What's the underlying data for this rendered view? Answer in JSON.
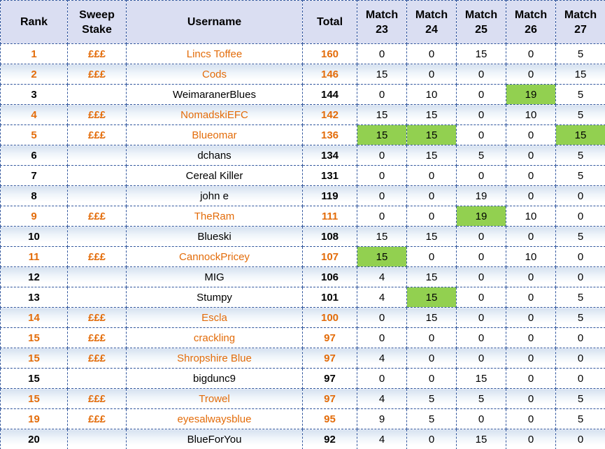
{
  "colors": {
    "accent_orange": "#e36c0a",
    "highlight_green": "#92d050",
    "header_background": "#dadef2",
    "row_stripe_blue": "#d5e1f0",
    "border_blue": "#31569d",
    "text_black": "#000000"
  },
  "table": {
    "columns": [
      {
        "id": "rank",
        "lines": [
          "Rank"
        ]
      },
      {
        "id": "sweep-stake",
        "lines": [
          "Sweep",
          "Stake"
        ]
      },
      {
        "id": "username",
        "lines": [
          "Username"
        ]
      },
      {
        "id": "total",
        "lines": [
          "Total"
        ]
      },
      {
        "id": "match-23",
        "lines": [
          "Match",
          "23"
        ]
      },
      {
        "id": "match-24",
        "lines": [
          "Match",
          "24"
        ]
      },
      {
        "id": "match-25",
        "lines": [
          "Match",
          "25"
        ]
      },
      {
        "id": "match-26",
        "lines": [
          "Match",
          "26"
        ]
      },
      {
        "id": "match-27",
        "lines": [
          "Match",
          "27"
        ]
      }
    ],
    "rows": [
      {
        "rank": "1",
        "stake": "£££",
        "username": "Lincs Toffee",
        "total": "160",
        "orange": true,
        "matches": [
          {
            "value": "0",
            "green": false
          },
          {
            "value": "0",
            "green": false
          },
          {
            "value": "15",
            "green": false
          },
          {
            "value": "0",
            "green": false
          },
          {
            "value": "5",
            "green": false
          }
        ]
      },
      {
        "rank": "2",
        "stake": "£££",
        "username": "Cods",
        "total": "146",
        "orange": true,
        "matches": [
          {
            "value": "15",
            "green": true
          },
          {
            "value": "0",
            "green": false
          },
          {
            "value": "0",
            "green": false
          },
          {
            "value": "0",
            "green": false
          },
          {
            "value": "15",
            "green": true
          }
        ]
      },
      {
        "rank": "3",
        "stake": "",
        "username": "WeimaranerBlues",
        "total": "144",
        "orange": false,
        "matches": [
          {
            "value": "0",
            "green": false
          },
          {
            "value": "10",
            "green": false
          },
          {
            "value": "0",
            "green": false
          },
          {
            "value": "19",
            "green": true
          },
          {
            "value": "5",
            "green": false
          }
        ]
      },
      {
        "rank": "4",
        "stake": "£££",
        "username": "NomadskiEFC",
        "total": "142",
        "orange": true,
        "matches": [
          {
            "value": "15",
            "green": true
          },
          {
            "value": "15",
            "green": true
          },
          {
            "value": "0",
            "green": false
          },
          {
            "value": "10",
            "green": false
          },
          {
            "value": "5",
            "green": false
          }
        ]
      },
      {
        "rank": "5",
        "stake": "£££",
        "username": "Blueomar",
        "total": "136",
        "orange": true,
        "matches": [
          {
            "value": "15",
            "green": true
          },
          {
            "value": "15",
            "green": true
          },
          {
            "value": "0",
            "green": false
          },
          {
            "value": "0",
            "green": false
          },
          {
            "value": "15",
            "green": true
          }
        ]
      },
      {
        "rank": "6",
        "stake": "",
        "username": "dchans",
        "total": "134",
        "orange": false,
        "matches": [
          {
            "value": "0",
            "green": false
          },
          {
            "value": "15",
            "green": true
          },
          {
            "value": "5",
            "green": false
          },
          {
            "value": "0",
            "green": false
          },
          {
            "value": "5",
            "green": false
          }
        ]
      },
      {
        "rank": "7",
        "stake": "",
        "username": "Cereal Killer",
        "total": "131",
        "orange": false,
        "matches": [
          {
            "value": "0",
            "green": false
          },
          {
            "value": "0",
            "green": false
          },
          {
            "value": "0",
            "green": false
          },
          {
            "value": "0",
            "green": false
          },
          {
            "value": "5",
            "green": false
          }
        ]
      },
      {
        "rank": "8",
        "stake": "",
        "username": "john e",
        "total": "119",
        "orange": false,
        "matches": [
          {
            "value": "0",
            "green": false
          },
          {
            "value": "0",
            "green": false
          },
          {
            "value": "19",
            "green": true
          },
          {
            "value": "0",
            "green": false
          },
          {
            "value": "0",
            "green": false
          }
        ]
      },
      {
        "rank": "9",
        "stake": "£££",
        "username": "TheRam",
        "total": "111",
        "orange": true,
        "matches": [
          {
            "value": "0",
            "green": false
          },
          {
            "value": "0",
            "green": false
          },
          {
            "value": "19",
            "green": true
          },
          {
            "value": "10",
            "green": false
          },
          {
            "value": "0",
            "green": false
          }
        ]
      },
      {
        "rank": "10",
        "stake": "",
        "username": "Blueski",
        "total": "108",
        "orange": false,
        "matches": [
          {
            "value": "15",
            "green": true
          },
          {
            "value": "15",
            "green": true
          },
          {
            "value": "0",
            "green": false
          },
          {
            "value": "0",
            "green": false
          },
          {
            "value": "5",
            "green": false
          }
        ]
      },
      {
        "rank": "11",
        "stake": "£££",
        "username": "CannockPricey",
        "total": "107",
        "orange": true,
        "matches": [
          {
            "value": "15",
            "green": true
          },
          {
            "value": "0",
            "green": false
          },
          {
            "value": "0",
            "green": false
          },
          {
            "value": "10",
            "green": false
          },
          {
            "value": "0",
            "green": false
          }
        ]
      },
      {
        "rank": "12",
        "stake": "",
        "username": "MIG",
        "total": "106",
        "orange": false,
        "matches": [
          {
            "value": "4",
            "green": false
          },
          {
            "value": "15",
            "green": true
          },
          {
            "value": "0",
            "green": false
          },
          {
            "value": "0",
            "green": false
          },
          {
            "value": "0",
            "green": false
          }
        ]
      },
      {
        "rank": "13",
        "stake": "",
        "username": "Stumpy",
        "total": "101",
        "orange": false,
        "matches": [
          {
            "value": "4",
            "green": false
          },
          {
            "value": "15",
            "green": true
          },
          {
            "value": "0",
            "green": false
          },
          {
            "value": "0",
            "green": false
          },
          {
            "value": "5",
            "green": false
          }
        ]
      },
      {
        "rank": "14",
        "stake": "£££",
        "username": "Escla",
        "total": "100",
        "orange": true,
        "matches": [
          {
            "value": "0",
            "green": false
          },
          {
            "value": "15",
            "green": true
          },
          {
            "value": "0",
            "green": false
          },
          {
            "value": "0",
            "green": false
          },
          {
            "value": "5",
            "green": false
          }
        ]
      },
      {
        "rank": "15",
        "stake": "£££",
        "username": "crackling",
        "total": "97",
        "orange": true,
        "matches": [
          {
            "value": "0",
            "green": false
          },
          {
            "value": "0",
            "green": false
          },
          {
            "value": "0",
            "green": false
          },
          {
            "value": "0",
            "green": false
          },
          {
            "value": "0",
            "green": false
          }
        ]
      },
      {
        "rank": "15",
        "stake": "£££",
        "username": "Shropshire Blue",
        "total": "97",
        "orange": true,
        "matches": [
          {
            "value": "4",
            "green": false
          },
          {
            "value": "0",
            "green": false
          },
          {
            "value": "0",
            "green": false
          },
          {
            "value": "0",
            "green": false
          },
          {
            "value": "0",
            "green": false
          }
        ]
      },
      {
        "rank": "15",
        "stake": "",
        "username": "bigdunc9",
        "total": "97",
        "orange": false,
        "matches": [
          {
            "value": "0",
            "green": false
          },
          {
            "value": "0",
            "green": false
          },
          {
            "value": "15",
            "green": false
          },
          {
            "value": "0",
            "green": false
          },
          {
            "value": "0",
            "green": false
          }
        ]
      },
      {
        "rank": "15",
        "stake": "£££",
        "username": "Trowel",
        "total": "97",
        "orange": true,
        "matches": [
          {
            "value": "4",
            "green": false
          },
          {
            "value": "5",
            "green": false
          },
          {
            "value": "5",
            "green": false
          },
          {
            "value": "0",
            "green": false
          },
          {
            "value": "5",
            "green": false
          }
        ]
      },
      {
        "rank": "19",
        "stake": "£££",
        "username": "eyesalwaysblue",
        "total": "95",
        "orange": true,
        "matches": [
          {
            "value": "9",
            "green": false
          },
          {
            "value": "5",
            "green": false
          },
          {
            "value": "0",
            "green": false
          },
          {
            "value": "0",
            "green": false
          },
          {
            "value": "5",
            "green": false
          }
        ]
      },
      {
        "rank": "20",
        "stake": "",
        "username": "BlueForYou",
        "total": "92",
        "orange": false,
        "matches": [
          {
            "value": "4",
            "green": false
          },
          {
            "value": "0",
            "green": false
          },
          {
            "value": "15",
            "green": false
          },
          {
            "value": "0",
            "green": false
          },
          {
            "value": "0",
            "green": false
          }
        ]
      }
    ]
  }
}
